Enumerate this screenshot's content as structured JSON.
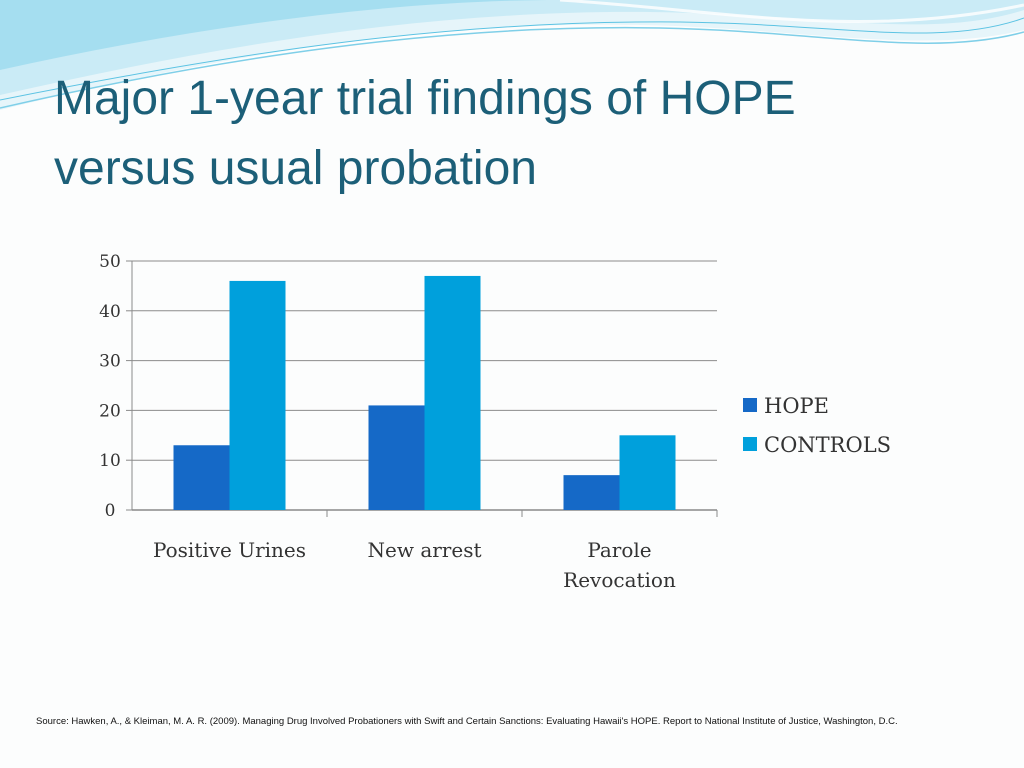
{
  "slide": {
    "title_lines": [
      "Major 1-year trial findings of HOPE",
      "versus usual probation"
    ],
    "source": "Source: Hawken, A., & Kleiman, M. A. R. (2009). Managing Drug Involved Probationers with Swift and Certain Sanctions: Evaluating Hawaii's HOPE. Report to National Institute of Justice, Washington, D.C."
  },
  "colors": {
    "title": "#1c5f78",
    "hope": "#1569c7",
    "controls": "#00a0dc",
    "wave_light": "#bfe7f4",
    "wave_mid": "#7fd0ea"
  },
  "chart_data": {
    "type": "bar",
    "title": "",
    "xlabel": "",
    "ylabel": "",
    "categories": [
      [
        "Positive Urines"
      ],
      [
        "New arrest"
      ],
      [
        "Parole",
        "Revocation"
      ]
    ],
    "series": [
      {
        "name": "HOPE",
        "values": [
          13,
          21,
          7
        ]
      },
      {
        "name": "CONTROLS",
        "values": [
          46,
          47,
          15
        ]
      }
    ],
    "ylim": [
      0,
      50
    ],
    "yticks": [
      0,
      10,
      20,
      30,
      40,
      50
    ],
    "grid": true,
    "legend_position": "right"
  }
}
